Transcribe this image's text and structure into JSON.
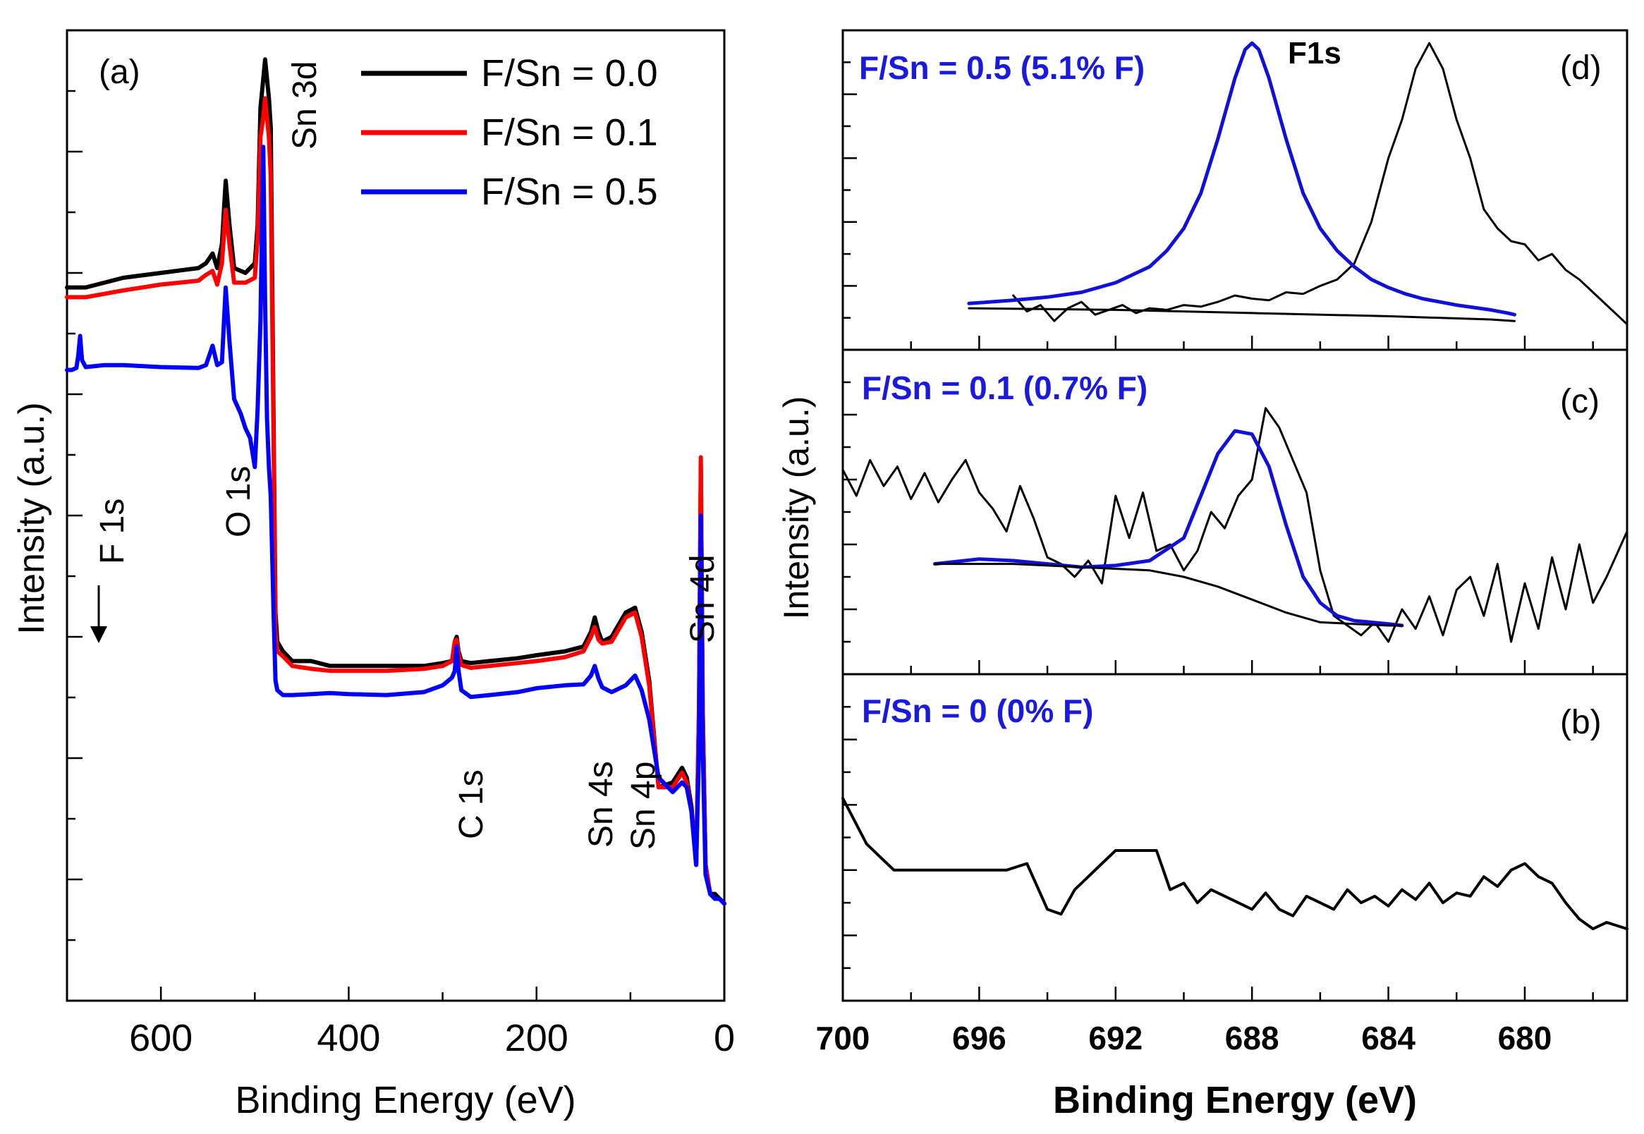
{
  "colors": {
    "black": "#000000",
    "red": "#ff0000",
    "blue": "#0000ff",
    "fitblue": "#1010d8",
    "labelblue": "#1a1adc"
  },
  "chart_data": [
    {
      "id": "a",
      "type": "line",
      "panel_label": "(a)",
      "xlabel": "Binding Energy (eV)",
      "ylabel": "Intensity (a.u.)",
      "xlim": [
        700,
        0
      ],
      "ylim": [
        0,
        100
      ],
      "xticks": [
        600,
        400,
        200,
        0
      ],
      "xtick_labels": [
        "600",
        "400",
        "200",
        "0"
      ],
      "legend": [
        {
          "label": "F/Sn = 0.0",
          "color": "#000000"
        },
        {
          "label": "F/Sn = 0.1",
          "color": "#ff0000"
        },
        {
          "label": "F/Sn = 0.5",
          "color": "#0000ff"
        }
      ],
      "peak_labels": [
        {
          "text": "F 1s",
          "x": 685,
          "y": 36
        },
        {
          "text": "O 1s",
          "x": 531,
          "y": 47
        },
        {
          "text": "Sn 3d",
          "x": 487,
          "y": 95
        },
        {
          "text": "C 1s",
          "x": 285,
          "y": 41
        },
        {
          "text": "Sn 4s",
          "x": 137,
          "y": 38
        },
        {
          "text": "Sn 4p",
          "x": 89,
          "y": 38
        },
        {
          "text": "Sn 4d",
          "x": 25,
          "y": 72
        }
      ],
      "series": [
        {
          "name": "F/Sn = 0.0",
          "color": "#000000",
          "x": [
            700,
            680,
            640,
            600,
            560,
            552,
            545,
            540,
            535,
            531,
            527,
            522,
            510,
            500,
            497,
            494,
            491,
            489,
            487,
            485,
            483,
            480,
            478,
            476,
            470,
            460,
            440,
            420,
            400,
            360,
            320,
            300,
            290,
            287,
            285,
            283,
            280,
            270,
            250,
            220,
            200,
            170,
            150,
            142,
            138,
            134,
            130,
            120,
            105,
            95,
            88,
            80,
            70,
            55,
            45,
            40,
            35,
            30,
            27,
            25,
            23,
            20,
            15,
            10,
            5,
            0
          ],
          "y": [
            73.5,
            73.5,
            74.5,
            75,
            75.5,
            76,
            77,
            75.5,
            78,
            84.5,
            80,
            75.5,
            75,
            76,
            80,
            92,
            95,
            97,
            95,
            93,
            90,
            60,
            40,
            37,
            36,
            35,
            35,
            34.5,
            34.5,
            34.5,
            34.5,
            34.8,
            35,
            37,
            37.5,
            36,
            35,
            34.8,
            35,
            35.3,
            35.6,
            36,
            36.5,
            38,
            39.5,
            38,
            37,
            37.5,
            40,
            40.5,
            38,
            33,
            22,
            22.5,
            24,
            23,
            20,
            14,
            30,
            55,
            30,
            14,
            11,
            11,
            10.5,
            10
          ]
        },
        {
          "name": "F/Sn = 0.1",
          "color": "#ff0000",
          "x": [
            700,
            680,
            640,
            600,
            560,
            552,
            545,
            540,
            535,
            531,
            527,
            522,
            510,
            500,
            497,
            494,
            491,
            489,
            487,
            485,
            483,
            480,
            478,
            476,
            470,
            460,
            440,
            420,
            400,
            360,
            320,
            300,
            290,
            287,
            285,
            283,
            280,
            270,
            250,
            220,
            200,
            170,
            150,
            142,
            138,
            134,
            130,
            120,
            105,
            95,
            88,
            80,
            70,
            55,
            45,
            40,
            35,
            30,
            27,
            25,
            23,
            20,
            15,
            10,
            5,
            0
          ],
          "y": [
            72.5,
            72.5,
            73.2,
            73.8,
            74.2,
            74.8,
            75.2,
            73.8,
            76,
            81.5,
            78,
            74,
            74,
            74.5,
            78.5,
            89,
            91,
            93,
            91,
            89,
            85,
            58,
            38,
            36,
            35.5,
            34.5,
            34.2,
            34,
            34,
            34,
            34.2,
            34.5,
            35,
            37,
            37.2,
            35.8,
            34.6,
            34.3,
            34.5,
            34.8,
            35,
            35.4,
            36,
            37.5,
            38.5,
            37.2,
            36.8,
            37,
            39.5,
            40,
            37.5,
            32.5,
            22,
            22,
            23.5,
            22.5,
            19.5,
            14,
            30,
            56,
            30,
            14,
            11,
            10.5,
            10.5,
            10
          ]
        },
        {
          "name": "F/Sn = 0.5",
          "color": "#0000ff",
          "x": [
            700,
            695,
            690,
            688,
            686,
            684,
            680,
            660,
            640,
            600,
            560,
            552,
            545,
            540,
            535,
            531,
            527,
            522,
            515,
            510,
            505,
            500,
            497,
            494,
            491,
            489,
            487,
            485,
            483,
            480,
            478,
            476,
            470,
            460,
            440,
            420,
            400,
            360,
            320,
            300,
            290,
            287,
            285,
            283,
            280,
            270,
            250,
            220,
            200,
            170,
            150,
            142,
            138,
            134,
            130,
            120,
            105,
            95,
            88,
            80,
            70,
            55,
            45,
            40,
            35,
            30,
            27,
            25,
            23,
            20,
            15,
            10,
            5,
            0
          ],
          "y": [
            65,
            65,
            65.2,
            66.5,
            68.5,
            66,
            65.3,
            65.5,
            65.5,
            65.3,
            65.2,
            65.5,
            67.5,
            65.5,
            65.8,
            73.5,
            68,
            62,
            60.5,
            59,
            58,
            55,
            61,
            70,
            88,
            72,
            60,
            55,
            52,
            40,
            33,
            32,
            31.5,
            31.5,
            31.6,
            31.7,
            31.6,
            31.5,
            31.8,
            32.5,
            33.3,
            34,
            36.5,
            34,
            32,
            31.3,
            31.5,
            31.8,
            32.2,
            32.5,
            32.6,
            33.5,
            34.5,
            33.2,
            32.3,
            31.8,
            32.5,
            33.5,
            32,
            29,
            23,
            21.5,
            22.5,
            22,
            19.5,
            14,
            26,
            50,
            26,
            13,
            11,
            10.5,
            10.5,
            10
          ]
        }
      ]
    },
    {
      "id": "d",
      "type": "line",
      "panel_label": "(d)",
      "annotation": "F/Sn = 0.5 (5.1% F)",
      "peak_label": "F1s",
      "xlim": [
        700,
        677
      ],
      "ylim": [
        0,
        100
      ],
      "series": [
        {
          "name": "data",
          "color": "#000000",
          "x": [
            695,
            694.6,
            694.2,
            693.8,
            693.4,
            693,
            692.6,
            692.2,
            691.8,
            691.4,
            691,
            690.5,
            690,
            689.5,
            689,
            688.5,
            688,
            687.5,
            687,
            686.5,
            686,
            685.5,
            685,
            684.5,
            684,
            683.6,
            683.2,
            682.8,
            682.4,
            682,
            681.6,
            681.2,
            680.8,
            680.4,
            680,
            679.6,
            679.2,
            678.8,
            678.4,
            678,
            677.6,
            677
          ],
          "y": [
            17,
            12,
            14,
            9,
            13,
            15,
            11,
            12.5,
            14,
            11.5,
            13,
            12.5,
            14,
            13.5,
            15,
            17,
            16,
            15.5,
            18,
            17.5,
            20,
            22,
            27,
            40,
            60,
            72,
            88,
            96,
            88,
            72,
            60,
            44,
            38,
            34,
            33,
            28,
            30,
            25,
            22,
            18,
            14,
            8
          ]
        },
        {
          "name": "fit",
          "color": "#1010d8",
          "x": [
            696.3,
            695,
            694,
            693,
            692,
            691,
            690.5,
            690,
            689.5,
            689,
            688.5,
            688.2,
            688,
            687.8,
            687.5,
            687,
            686.5,
            686,
            685.5,
            685,
            684.5,
            684,
            683.5,
            683,
            682,
            681,
            680.5,
            680.3
          ],
          "y": [
            14.5,
            15.5,
            16.5,
            18,
            21,
            26,
            31,
            38,
            49,
            66,
            85,
            94,
            96,
            94,
            85,
            66,
            49,
            38,
            31,
            26,
            22,
            19.5,
            17.5,
            16,
            14,
            12.5,
            11.5,
            11
          ]
        },
        {
          "name": "background",
          "color": "#000000",
          "x": [
            696.3,
            692,
            688,
            684,
            681,
            680.3
          ],
          "y": [
            13,
            12.5,
            11.5,
            10.5,
            9.5,
            9
          ]
        }
      ]
    },
    {
      "id": "c",
      "type": "line",
      "panel_label": "(c)",
      "annotation": "F/Sn = 0.1 (0.7% F)",
      "ylabel": "Intensity (a.u.)",
      "xlim": [
        700,
        677
      ],
      "ylim": [
        0,
        100
      ],
      "series": [
        {
          "name": "data",
          "color": "#000000",
          "x": [
            700,
            699.6,
            699.2,
            698.8,
            698.4,
            698,
            697.6,
            697.2,
            696.8,
            696.4,
            696,
            695.6,
            695.2,
            694.8,
            694.4,
            694,
            693.6,
            693.2,
            692.8,
            692.4,
            692,
            691.6,
            691.2,
            690.8,
            690.4,
            690,
            689.6,
            689.2,
            688.8,
            688.4,
            688,
            687.6,
            687.2,
            686.8,
            686.4,
            686,
            685.6,
            685.2,
            684.8,
            684.4,
            684,
            683.6,
            683.2,
            682.8,
            682.4,
            682,
            681.6,
            681.2,
            680.8,
            680.4,
            680,
            679.6,
            679.2,
            678.8,
            678.4,
            678,
            677.6,
            677
          ],
          "y": [
            63,
            55,
            66,
            58,
            64,
            54,
            62,
            53,
            60,
            66,
            56,
            51,
            44,
            58,
            48,
            36,
            34,
            30,
            35,
            28,
            55,
            42,
            56,
            38,
            40,
            32,
            38,
            50,
            45,
            55,
            60,
            82,
            76,
            66,
            56,
            32,
            18,
            15,
            12,
            16,
            10,
            20,
            14,
            24,
            12,
            26,
            30,
            18,
            34,
            10,
            28,
            14,
            36,
            20,
            40,
            22,
            30,
            44
          ]
        },
        {
          "name": "fit",
          "color": "#1010d8",
          "x": [
            697.3,
            696,
            695,
            694,
            693,
            692,
            691,
            690,
            689.5,
            689,
            688.5,
            688,
            687.5,
            687,
            686.5,
            686,
            685.5,
            685,
            684.5,
            684,
            683.6
          ],
          "y": [
            34,
            35.5,
            35,
            34,
            33,
            33.5,
            35,
            42,
            55,
            68,
            75,
            74,
            64,
            46,
            30,
            22,
            18,
            16.5,
            16,
            15.5,
            15
          ]
        },
        {
          "name": "background",
          "color": "#000000",
          "x": [
            697.3,
            695,
            693,
            691,
            690,
            689,
            688,
            687,
            686,
            685,
            684,
            683.6
          ],
          "y": [
            34,
            34,
            33,
            32,
            30,
            27,
            23,
            19,
            16,
            15.5,
            15,
            15
          ]
        }
      ]
    },
    {
      "id": "b",
      "type": "line",
      "panel_label": "(b)",
      "annotation": "F/Sn = 0 (0% F)",
      "xlabel": "Binding Energy (eV)",
      "xlim": [
        700,
        677
      ],
      "xticks": [
        700,
        696,
        692,
        688,
        684,
        680
      ],
      "xtick_labels": [
        "700",
        "696",
        "692",
        "688",
        "684",
        "680"
      ],
      "ylim": [
        0,
        100
      ],
      "series": [
        {
          "name": "data",
          "color": "#000000",
          "x": [
            700,
            699.3,
            698.5,
            697,
            695.2,
            694.6,
            694,
            693.6,
            693.2,
            692.8,
            692.4,
            692,
            691.6,
            691.2,
            690.8,
            690.4,
            690,
            689.6,
            689.2,
            688.8,
            688.4,
            688,
            687.6,
            687.2,
            686.8,
            686.4,
            686,
            685.6,
            685.2,
            684.8,
            684.4,
            684,
            683.6,
            683.2,
            682.8,
            682.4,
            682,
            681.6,
            681.2,
            680.8,
            680.4,
            680,
            679.6,
            679.2,
            678.8,
            678.4,
            678,
            677.6,
            677
          ],
          "y": [
            62,
            48,
            40,
            40,
            40,
            42,
            28,
            26.5,
            34,
            38,
            42,
            46,
            46,
            46,
            46,
            34,
            36,
            30,
            34,
            32,
            30,
            28,
            33,
            28,
            26,
            32,
            30,
            28,
            34,
            30,
            32,
            29,
            34,
            31,
            36,
            30,
            33,
            32,
            38,
            35,
            40,
            42,
            38,
            36,
            30,
            25,
            22,
            24,
            22
          ]
        }
      ]
    }
  ]
}
